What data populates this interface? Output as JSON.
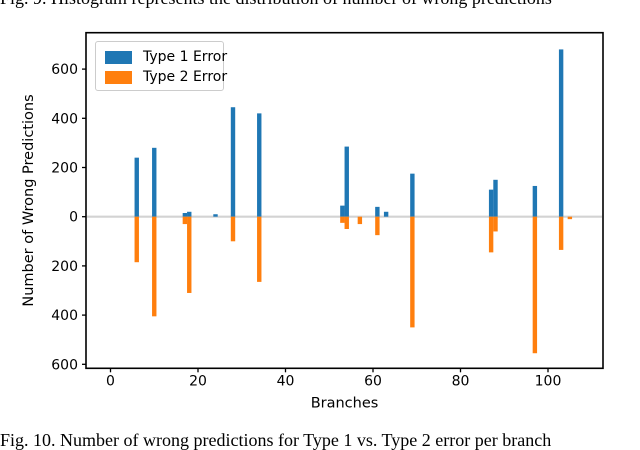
{
  "page": {
    "top_caption_clipped": "Fig. 9. Histogram represents the distribution of number of wrong predictions",
    "bottom_caption": "Fig. 10. Number of wrong predictions for Type 1 vs. Type 2 error per branch"
  },
  "chart_data": {
    "type": "bar",
    "title": "",
    "xlabel": "Branches",
    "ylabel": "Number of Wrong Predictions",
    "x_tick_labels": [
      "0",
      "20",
      "40",
      "60",
      "80",
      "100"
    ],
    "x_tick_values": [
      0,
      20,
      40,
      60,
      80,
      100
    ],
    "y_tick_labels": [
      "600",
      "400",
      "200",
      "0",
      "200",
      "400",
      "600"
    ],
    "y_tick_values": [
      600,
      400,
      200,
      0,
      -200,
      -400,
      -600
    ],
    "xlim": [
      -5.6,
      112.7
    ],
    "ylim": [
      -617,
      742
    ],
    "grid": false,
    "zero_line_color": "#d3d3d3",
    "legend_position": "upper left",
    "legend": [
      {
        "label": "Type 1 Error",
        "color": "#1f77b4"
      },
      {
        "label": "Type 2 Error",
        "color": "#ff7f0e"
      }
    ],
    "categories": [
      6,
      10,
      17,
      18,
      24,
      28,
      34,
      53,
      54,
      57,
      61,
      63,
      69,
      87,
      88,
      97,
      103,
      105
    ],
    "series": [
      {
        "name": "Type 1 Error",
        "color": "#1f77b4",
        "values": [
          240,
          280,
          15,
          20,
          10,
          445,
          420,
          45,
          285,
          0,
          40,
          20,
          175,
          110,
          150,
          125,
          680,
          0
        ]
      },
      {
        "name": "Type 2 Error",
        "color": "#ff7f0e",
        "values": [
          -185,
          -405,
          -30,
          -310,
          0,
          -100,
          -265,
          -25,
          -50,
          -30,
          -75,
          0,
          -450,
          -145,
          -60,
          -555,
          -135,
          -10
        ]
      }
    ]
  }
}
